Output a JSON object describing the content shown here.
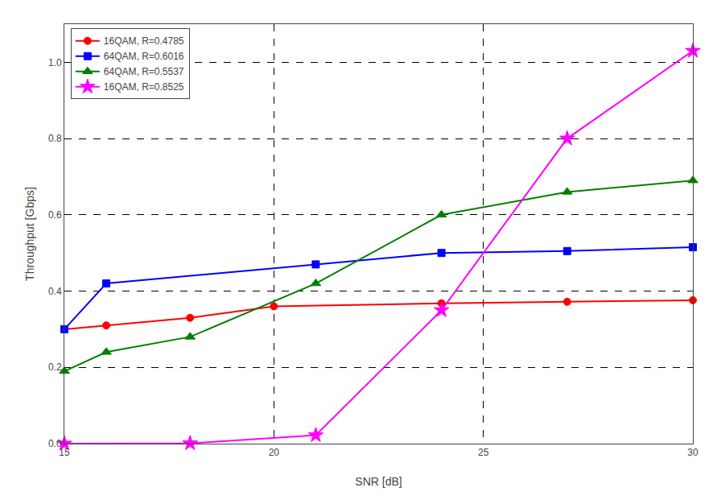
{
  "chart_data": {
    "type": "line",
    "xlabel": "SNR [dB]",
    "ylabel": "Throughput [Gbps]",
    "series": [
      {
        "name": "16QAM, R=0.4785",
        "color": "#FF0000",
        "marker": "circle",
        "x": [
          15,
          16,
          18,
          20,
          24,
          27,
          30
        ],
        "values": [
          0.3,
          0.31,
          0.33,
          0.36,
          0.368,
          0.372,
          0.376
        ]
      },
      {
        "name": "64QAM, R=0.6016",
        "color": "#0000FF",
        "marker": "square",
        "x": [
          15,
          16,
          21,
          24,
          27,
          30
        ],
        "values": [
          0.3,
          0.42,
          0.47,
          0.5,
          0.505,
          0.515
        ]
      },
      {
        "name": "64QAM, R=0.5537",
        "color": "#008000",
        "marker": "triangle",
        "x": [
          15,
          16,
          18,
          21,
          24,
          27,
          30
        ],
        "values": [
          0.19,
          0.24,
          0.28,
          0.42,
          0.6,
          0.66,
          0.69
        ]
      },
      {
        "name": "16QAM, R=0.8525",
        "color": "#FF00FF",
        "marker": "star",
        "x": [
          15,
          18,
          21,
          24,
          27,
          30
        ],
        "values": [
          0.0,
          0.001,
          0.022,
          0.35,
          0.8,
          1.03
        ]
      }
    ],
    "xlim": [
      15,
      30
    ],
    "ylim": [
      0,
      1.1
    ],
    "xticks": [
      15,
      20,
      25,
      30
    ],
    "yticks": [
      {
        "value": 0,
        "label": "0.0"
      },
      0.2,
      0.4,
      0.6,
      0.8,
      {
        "value": 1,
        "label": "1.0"
      }
    ],
    "grid": true,
    "legend": "upper left"
  }
}
